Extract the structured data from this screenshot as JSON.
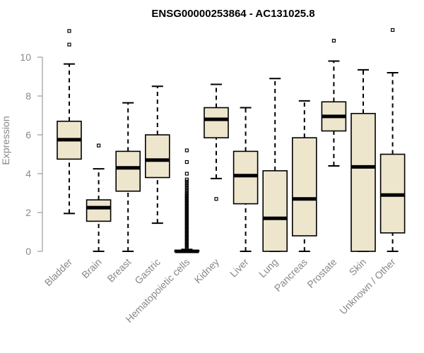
{
  "chart_data": {
    "type": "boxplot",
    "title": "ENSG00000253864 - AC131025.8",
    "xlabel": "",
    "ylabel": "Expression",
    "ylim": [
      0,
      11.5
    ],
    "yticks": [
      0,
      2,
      4,
      6,
      8,
      10
    ],
    "tick_labels": [
      "0",
      "2",
      "4",
      "6",
      "8",
      "10"
    ],
    "box_fill": "#ede6cd",
    "box_stroke": "#000000",
    "categories": [
      "Bladder",
      "Brain",
      "Breast",
      "Gastric",
      "Hematopoietic cells",
      "Kidney",
      "Liver",
      "Lung",
      "Pancreas",
      "Prostate",
      "Skin",
      "Unknown / Other"
    ],
    "boxes": [
      {
        "name": "Bladder",
        "whisker_low": 1.95,
        "q1": 4.75,
        "median": 5.75,
        "q3": 6.7,
        "whisker_high": 9.65,
        "outliers": [
          10.65,
          11.35
        ]
      },
      {
        "name": "Brain",
        "whisker_low": 0.0,
        "q1": 1.55,
        "median": 2.25,
        "q3": 2.65,
        "whisker_high": 4.25,
        "outliers": [
          5.45
        ]
      },
      {
        "name": "Breast",
        "whisker_low": 0.0,
        "q1": 3.1,
        "median": 4.3,
        "q3": 5.15,
        "whisker_high": 7.65,
        "outliers": []
      },
      {
        "name": "Gastric",
        "whisker_low": 1.45,
        "q1": 3.8,
        "median": 4.7,
        "q3": 6.0,
        "whisker_high": 8.5,
        "outliers": []
      },
      {
        "name": "Hematopoietic cells",
        "whisker_low": 0.0,
        "q1": 0.0,
        "median": 0.0,
        "q3": 0.05,
        "whisker_high": 0.1,
        "outliers": [
          0.15,
          0.2,
          0.25,
          0.3,
          0.35,
          0.4,
          0.45,
          0.5,
          0.55,
          0.6,
          0.65,
          0.7,
          0.75,
          0.8,
          0.85,
          0.9,
          0.95,
          1.0,
          1.05,
          1.1,
          1.15,
          1.2,
          1.25,
          1.3,
          1.35,
          1.4,
          1.45,
          1.5,
          1.55,
          1.6,
          1.65,
          1.7,
          1.75,
          1.8,
          1.85,
          1.9,
          1.95,
          2.0,
          2.05,
          2.1,
          2.15,
          2.2,
          2.25,
          2.3,
          2.35,
          2.4,
          2.45,
          2.5,
          2.55,
          2.6,
          2.65,
          2.7,
          2.75,
          2.8,
          2.85,
          2.9,
          2.95,
          3.0,
          3.1,
          3.2,
          3.3,
          3.4,
          3.5,
          3.6,
          3.7,
          4.0,
          4.6,
          5.2
        ]
      },
      {
        "name": "Kidney",
        "whisker_low": 3.75,
        "q1": 5.85,
        "median": 6.8,
        "q3": 7.4,
        "whisker_high": 8.6,
        "outliers": [
          2.7
        ]
      },
      {
        "name": "Liver",
        "whisker_low": 0.0,
        "q1": 2.45,
        "median": 3.9,
        "q3": 5.15,
        "whisker_high": 7.4,
        "outliers": []
      },
      {
        "name": "Lung",
        "whisker_low": 0.0,
        "q1": 0.0,
        "median": 1.7,
        "q3": 4.15,
        "whisker_high": 8.9,
        "outliers": []
      },
      {
        "name": "Pancreas",
        "whisker_low": 0.0,
        "q1": 0.8,
        "median": 2.7,
        "q3": 5.85,
        "whisker_high": 7.75,
        "outliers": []
      },
      {
        "name": "Prostate",
        "whisker_low": 4.4,
        "q1": 6.2,
        "median": 6.95,
        "q3": 7.7,
        "whisker_high": 9.8,
        "outliers": [
          10.85
        ]
      },
      {
        "name": "Skin",
        "whisker_low": 0.0,
        "q1": 0.0,
        "median": 4.35,
        "q3": 7.1,
        "whisker_high": 9.35,
        "outliers": []
      },
      {
        "name": "Unknown / Other",
        "whisker_low": 0.0,
        "q1": 0.95,
        "median": 2.9,
        "q3": 5.0,
        "whisker_high": 9.2,
        "outliers": [
          11.4
        ]
      }
    ]
  }
}
